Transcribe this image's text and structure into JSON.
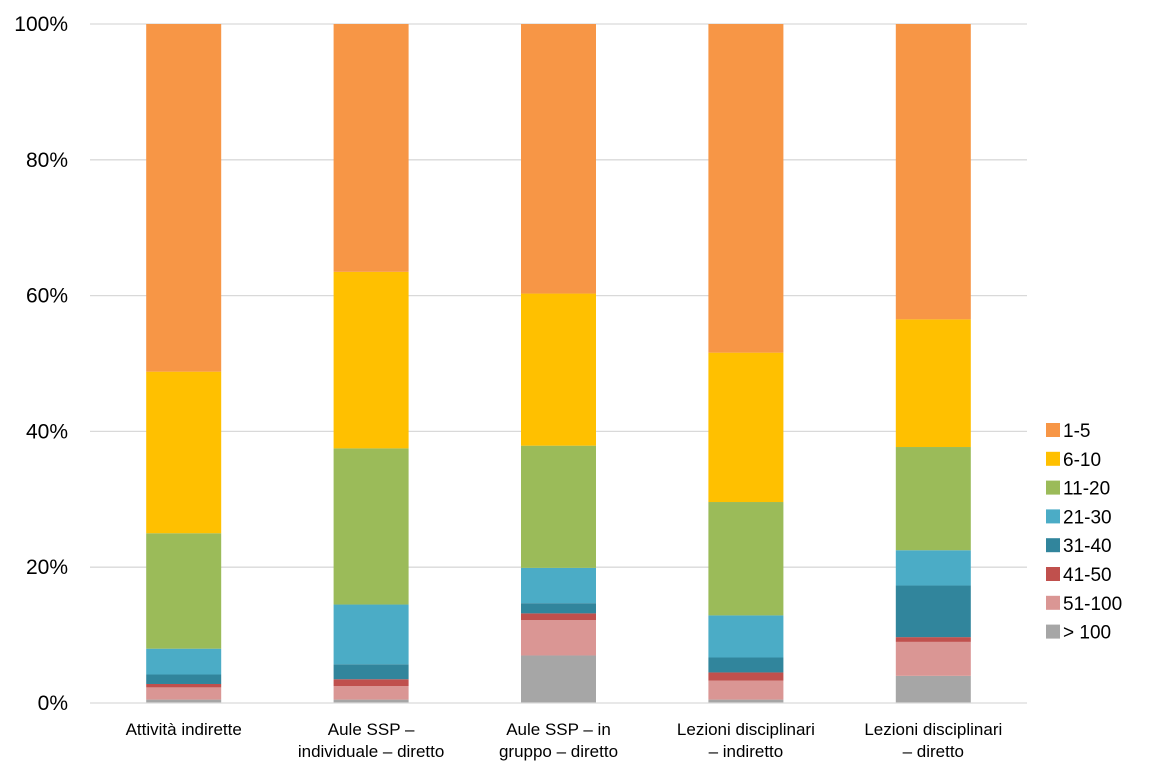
{
  "chart_data": {
    "type": "bar",
    "stacked": true,
    "percent_stacked": true,
    "categories": [
      [
        "Attività indirette"
      ],
      [
        "Aule SSP –",
        "individuale  – diretto"
      ],
      [
        "Aule SSP – in",
        "gruppo – diretto"
      ],
      [
        "Lezioni  disciplinari",
        "– indiretto"
      ],
      [
        "Lezioni  disciplinari",
        "– diretto"
      ]
    ],
    "series": [
      {
        "name": "> 100",
        "color": "#a6a6a6",
        "values": [
          0.5,
          0.5,
          7.0,
          0.5,
          4.0
        ]
      },
      {
        "name": "51-100",
        "color": "#da9694",
        "values": [
          1.8,
          2.0,
          5.2,
          2.8,
          5.0
        ]
      },
      {
        "name": "41-50",
        "color": "#c0504d",
        "values": [
          0.5,
          1.0,
          1.0,
          1.2,
          0.7
        ]
      },
      {
        "name": "31-40",
        "color": "#31859c",
        "values": [
          1.4,
          2.2,
          1.5,
          2.2,
          7.6
        ]
      },
      {
        "name": "21-30",
        "color": "#4bacc6",
        "values": [
          3.8,
          8.8,
          5.2,
          6.2,
          5.2
        ]
      },
      {
        "name": "11-20",
        "color": "#9bbb59",
        "values": [
          17.0,
          23.0,
          18.0,
          16.7,
          15.2
        ]
      },
      {
        "name": "6-10",
        "color": "#ffc000",
        "values": [
          23.8,
          26.0,
          22.4,
          22.0,
          18.8
        ]
      },
      {
        "name": "1-5",
        "color": "#f79646",
        "values": [
          51.2,
          36.5,
          39.7,
          48.4,
          43.5
        ]
      }
    ],
    "y_ticks": [
      "0%",
      "20%",
      "40%",
      "60%",
      "80%",
      "100%"
    ],
    "ylim": [
      0,
      100
    ],
    "grid": true,
    "legend_position": "right"
  }
}
